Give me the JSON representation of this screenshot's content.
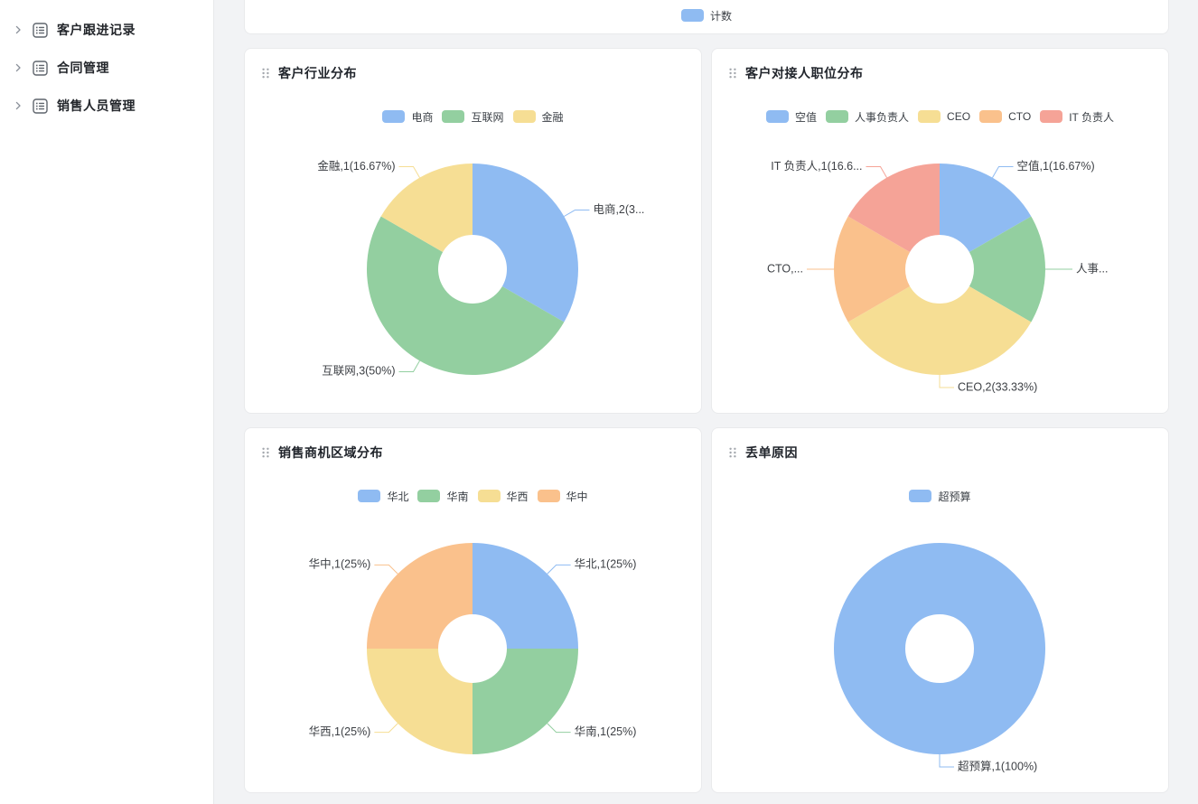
{
  "app": {
    "background": "#f2f3f5",
    "card_background": "#ffffff",
    "card_border": "#e9eaec"
  },
  "palette": {
    "blue": "#8FBBF2",
    "green": "#93CFA0",
    "yellow": "#F6DE94",
    "orange": "#FAC18C",
    "salmon": "#F5A397"
  },
  "sidebar": {
    "items": [
      {
        "label": "客户跟进记录",
        "icon": "list-icon",
        "chevron": "chevron-right-icon"
      },
      {
        "label": "合同管理",
        "icon": "list-icon",
        "chevron": "chevron-right-icon"
      },
      {
        "label": "销售人员管理",
        "icon": "list-icon",
        "chevron": "chevron-right-icon"
      }
    ]
  },
  "top_card": {
    "legend": [
      {
        "label": "计数",
        "color": "#8FBBF2"
      }
    ]
  },
  "chart_data": [
    {
      "type": "pie",
      "donut": true,
      "title": "客户行业分布",
      "legend_position": "top",
      "categories": [
        "电商",
        "互联网",
        "金融"
      ],
      "values": [
        2,
        3,
        1
      ],
      "percents": [
        "33.33%",
        "50%",
        "16.67%"
      ],
      "colors": [
        "#8FBBF2",
        "#93CFA0",
        "#F6DE94"
      ],
      "callouts": [
        "电商,2(3...",
        "互联网,3(50%)",
        "金融,1(16.67%)"
      ],
      "legend_items": [
        {
          "label": "电商",
          "color": "#8FBBF2"
        },
        {
          "label": "互联网",
          "color": "#93CFA0"
        },
        {
          "label": "金融",
          "color": "#F6DE94"
        }
      ]
    },
    {
      "type": "pie",
      "donut": true,
      "title": "客户对接人职位分布",
      "legend_position": "top",
      "categories": [
        "空值",
        "人事负责人",
        "CEO",
        "CTO",
        "IT 负责人"
      ],
      "values": [
        1,
        1,
        2,
        1,
        1
      ],
      "percents": [
        "16.67%",
        "16.67%",
        "33.33%",
        "16.67%",
        "16.67%"
      ],
      "colors": [
        "#8FBBF2",
        "#93CFA0",
        "#F6DE94",
        "#FAC18C",
        "#F5A397"
      ],
      "callouts": [
        "空值,1(16.67%)",
        "人事...",
        "CEO,2(33.33%)",
        "CTO,...",
        "IT 负责人,1(16.6..."
      ],
      "legend_items": [
        {
          "label": "空值",
          "color": "#8FBBF2"
        },
        {
          "label": "人事负责人",
          "color": "#93CFA0"
        },
        {
          "label": "CEO",
          "color": "#F6DE94"
        },
        {
          "label": "CTO",
          "color": "#FAC18C"
        },
        {
          "label": "IT 负责人",
          "color": "#F5A397"
        }
      ]
    },
    {
      "type": "pie",
      "donut": true,
      "title": "销售商机区域分布",
      "legend_position": "top",
      "categories": [
        "华北",
        "华南",
        "华西",
        "华中"
      ],
      "values": [
        1,
        1,
        1,
        1
      ],
      "percents": [
        "25%",
        "25%",
        "25%",
        "25%"
      ],
      "colors": [
        "#8FBBF2",
        "#93CFA0",
        "#F6DE94",
        "#FAC18C"
      ],
      "callouts": [
        "华北,1(25%)",
        "华南,1(25%)",
        "华西,1(25%)",
        "华中,1(25%)"
      ],
      "legend_items": [
        {
          "label": "华北",
          "color": "#8FBBF2"
        },
        {
          "label": "华南",
          "color": "#93CFA0"
        },
        {
          "label": "华西",
          "color": "#F6DE94"
        },
        {
          "label": "华中",
          "color": "#FAC18C"
        }
      ]
    },
    {
      "type": "pie",
      "donut": true,
      "title": "丢单原因",
      "legend_position": "top",
      "categories": [
        "超预算"
      ],
      "values": [
        1
      ],
      "percents": [
        "100%"
      ],
      "colors": [
        "#8FBBF2"
      ],
      "callouts": [
        "超预算,1(100%)"
      ],
      "legend_items": [
        {
          "label": "超预算",
          "color": "#8FBBF2"
        }
      ]
    }
  ]
}
